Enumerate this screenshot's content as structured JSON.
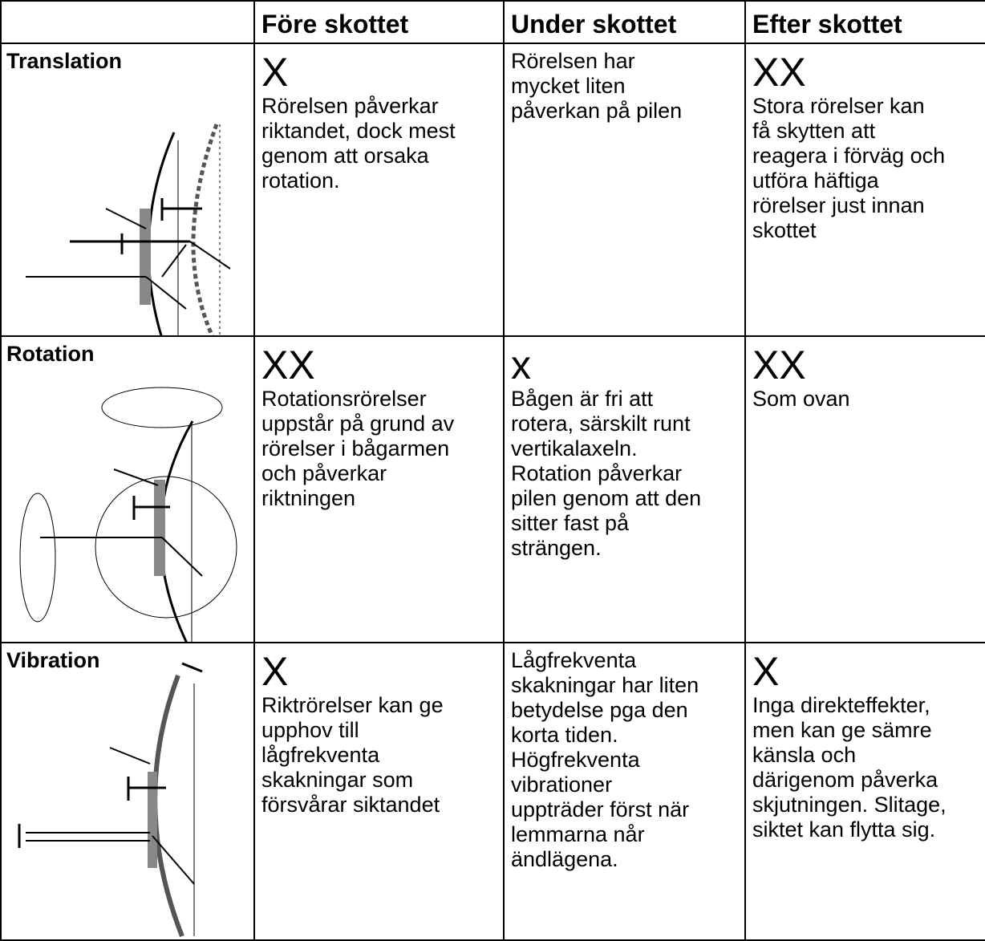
{
  "table": {
    "header": [
      "Före skottet",
      "Under skottet",
      "Efter skottet"
    ],
    "rows": [
      {
        "label": "Translation",
        "cells": [
          {
            "mark": "X",
            "lines": [
              "Rörelsen påverkar",
              "riktandet, dock mest",
              "genom att orsaka",
              "rotation."
            ]
          },
          {
            "lines": [
              "Rörelsen har",
              "mycket liten",
              "påverkan på pilen"
            ]
          },
          {
            "mark": "XX",
            "lines": [
              "Stora rörelser kan",
              "få skytten att",
              "reagera i förväg och",
              "utföra häftiga",
              "rörelser just innan",
              "skottet"
            ]
          }
        ]
      },
      {
        "label": "Rotation",
        "cells": [
          {
            "mark": "XX",
            "lines": [
              "Rotationsrörelser",
              "uppstår på grund av",
              "rörelser i bågarmen",
              "och påverkar",
              "riktningen"
            ]
          },
          {
            "mark": "x",
            "lines": [
              "Bågen är fri att",
              "rotera, särskilt runt",
              "vertikalaxeln.",
              "Rotation påverkar",
              "pilen genom att den",
              "sitter fast på",
              "strängen."
            ]
          },
          {
            "mark": "XX",
            "lines": [
              "Som ovan"
            ]
          }
        ]
      },
      {
        "label": "Vibration",
        "cells": [
          {
            "mark": "X",
            "lines": [
              "Riktrörelser kan ge",
              "upphov till",
              "lågfrekventa",
              "skakningar som",
              "försvårar siktandet"
            ]
          },
          {
            "lines": [
              "Lågfrekventa",
              "skakningar har liten",
              "betydelse pga den",
              "korta tiden.",
              "Högfrekventa",
              "vibrationer",
              "uppträder först när",
              "lemmarna når",
              "ändlägena."
            ]
          },
          {
            "mark": "X",
            "lines": [
              "Inga direkteffekter,",
              "men kan ge sämre",
              "känsla och",
              "därigenom påverka",
              "skjutningen. Slitage,",
              "siktet kan flytta sig."
            ]
          }
        ]
      }
    ]
  }
}
